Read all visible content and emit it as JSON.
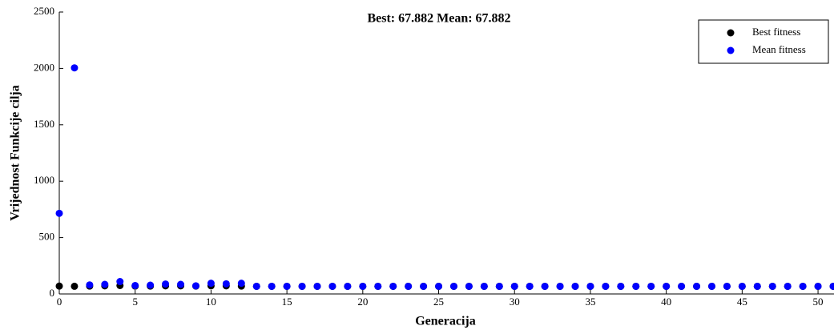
{
  "chart_data": {
    "type": "scatter",
    "title": "Best: 67.882 Mean: 67.882",
    "xlabel": "Generacija",
    "ylabel": "Vrijednost Funkcije cilja",
    "x": [
      0,
      1,
      2,
      3,
      4,
      5,
      6,
      7,
      8,
      9,
      10,
      11,
      12,
      13,
      14,
      15,
      16,
      17,
      18,
      19,
      20,
      21,
      22,
      23,
      24,
      25,
      26,
      27,
      28,
      29,
      30,
      31,
      32,
      33,
      34,
      35,
      36,
      37,
      38,
      39,
      40,
      41,
      42,
      43,
      44,
      45,
      46,
      47,
      48,
      49,
      50,
      51
    ],
    "series": [
      {
        "name": "Best fitness",
        "color": "#000000",
        "values": [
          70,
          68,
          70,
          72,
          75,
          70,
          70,
          72,
          72,
          70,
          72,
          72,
          70,
          67.882,
          67.882,
          67.882,
          67.882,
          67.882,
          67.882,
          67.882,
          67.882,
          67.882,
          67.882,
          67.882,
          67.882,
          67.882,
          67.882,
          67.882,
          67.882,
          67.882,
          67.882,
          67.882,
          67.882,
          67.882,
          67.882,
          67.882,
          67.882,
          67.882,
          67.882,
          67.882,
          67.882,
          67.882,
          67.882,
          67.882,
          67.882,
          67.882,
          67.882,
          67.882,
          67.882,
          67.882,
          67.882,
          67.882
        ]
      },
      {
        "name": "Mean fitness",
        "color": "#0000ff",
        "values": [
          715,
          2005,
          80,
          85,
          110,
          75,
          78,
          88,
          85,
          72,
          95,
          90,
          95,
          67.882,
          67.882,
          67.882,
          67.882,
          67.882,
          67.882,
          67.882,
          67.882,
          67.882,
          67.882,
          67.882,
          67.882,
          67.882,
          67.882,
          67.882,
          67.882,
          67.882,
          67.882,
          67.882,
          67.882,
          67.882,
          67.882,
          67.882,
          67.882,
          67.882,
          67.882,
          67.882,
          67.882,
          67.882,
          67.882,
          67.882,
          67.882,
          67.882,
          67.882,
          67.882,
          67.882,
          67.882,
          67.882,
          67.882
        ]
      }
    ],
    "xlim": [
      0,
      51
    ],
    "xticks": [
      0,
      5,
      10,
      15,
      20,
      25,
      30,
      35,
      40,
      45,
      50
    ],
    "ylim": [
      0,
      2500
    ],
    "yticks": [
      0,
      500,
      1000,
      1500,
      2000,
      2500
    ],
    "legend": "northeast"
  }
}
